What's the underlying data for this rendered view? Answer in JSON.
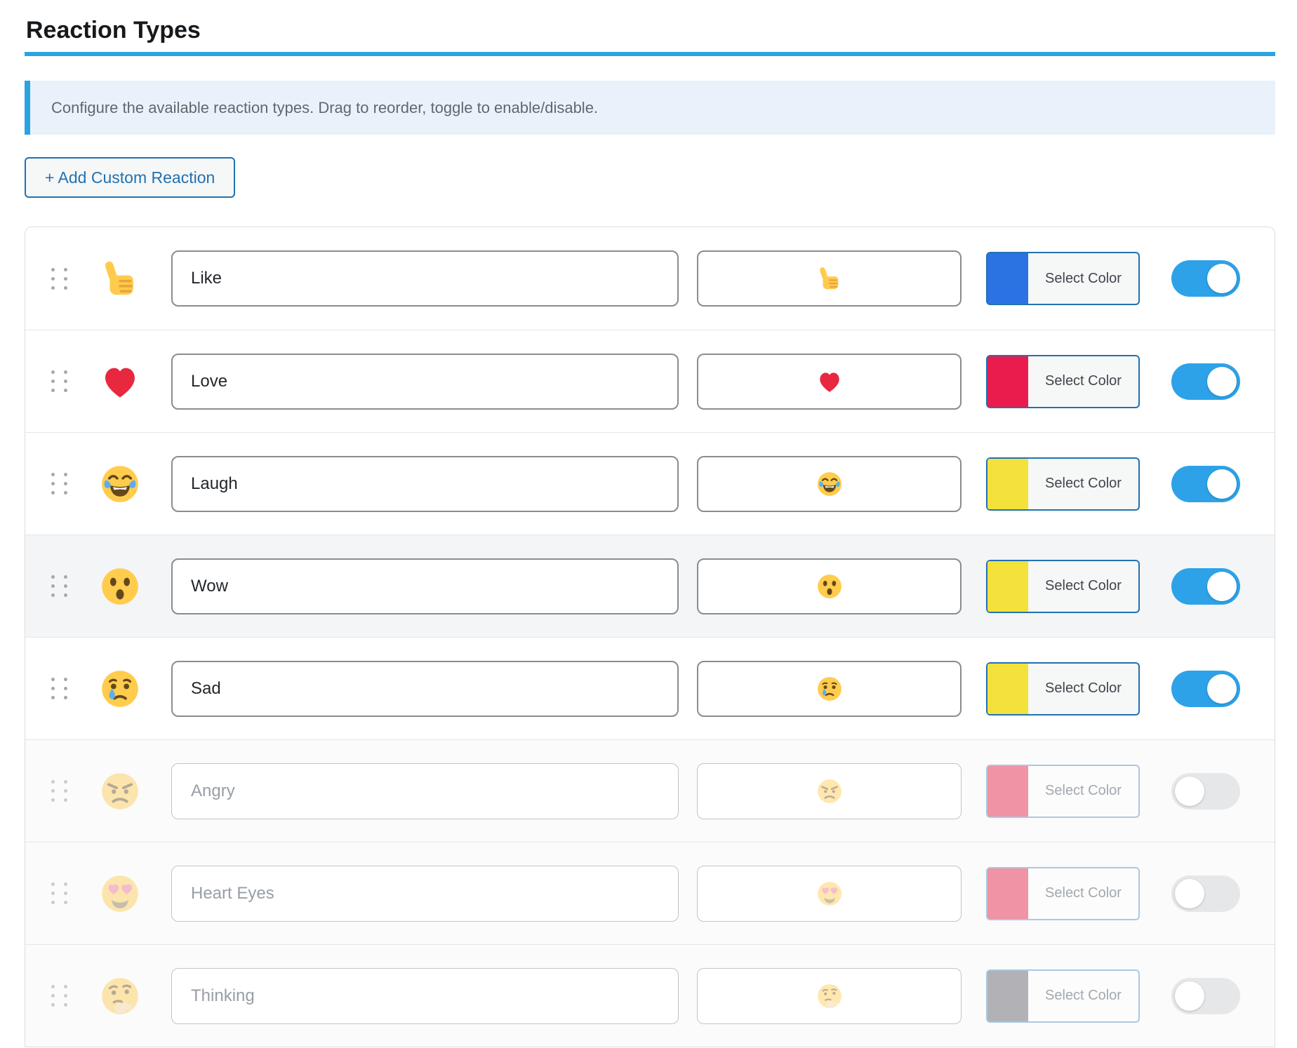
{
  "page": {
    "title": "Reaction Types",
    "notice": "Configure the available reaction types. Drag to reorder, toggle to enable/disable.",
    "add_button_label": "+ Add Custom Reaction",
    "select_color_label": "Select Color"
  },
  "colors": {
    "accent": "#2ba3e3",
    "button_blue": "#2271b1",
    "toggle_on": "#2da2e8",
    "toggle_off": "#e6e7e9"
  },
  "reactions": [
    {
      "name": "Like",
      "emoji": "thumbs-up",
      "emoji_char": "👍",
      "swatch_color": "#2b72e3",
      "enabled": true,
      "highlighted": false
    },
    {
      "name": "Love",
      "emoji": "red-heart",
      "emoji_char": "❤️",
      "swatch_color": "#ea1c4d",
      "enabled": true,
      "highlighted": false
    },
    {
      "name": "Laugh",
      "emoji": "face-with-tears-of-joy",
      "emoji_char": "😂",
      "swatch_color": "#f3e13c",
      "enabled": true,
      "highlighted": false
    },
    {
      "name": "Wow",
      "emoji": "astonished-face",
      "emoji_char": "😮",
      "swatch_color": "#f3e13c",
      "enabled": true,
      "highlighted": true
    },
    {
      "name": "Sad",
      "emoji": "crying-face",
      "emoji_char": "😢",
      "swatch_color": "#f3e13c",
      "enabled": true,
      "highlighted": false
    },
    {
      "name": "Angry",
      "emoji": "angry-face",
      "emoji_char": "😠",
      "swatch_color": "#ef93a5",
      "enabled": false,
      "highlighted": false
    },
    {
      "name": "Heart Eyes",
      "emoji": "heart-eyes-face",
      "emoji_char": "😍",
      "swatch_color": "#ef93a5",
      "enabled": false,
      "highlighted": false
    },
    {
      "name": "Thinking",
      "emoji": "thinking-face",
      "emoji_char": "🤔",
      "swatch_color": "#b2b2b6",
      "enabled": false,
      "highlighted": false
    }
  ]
}
